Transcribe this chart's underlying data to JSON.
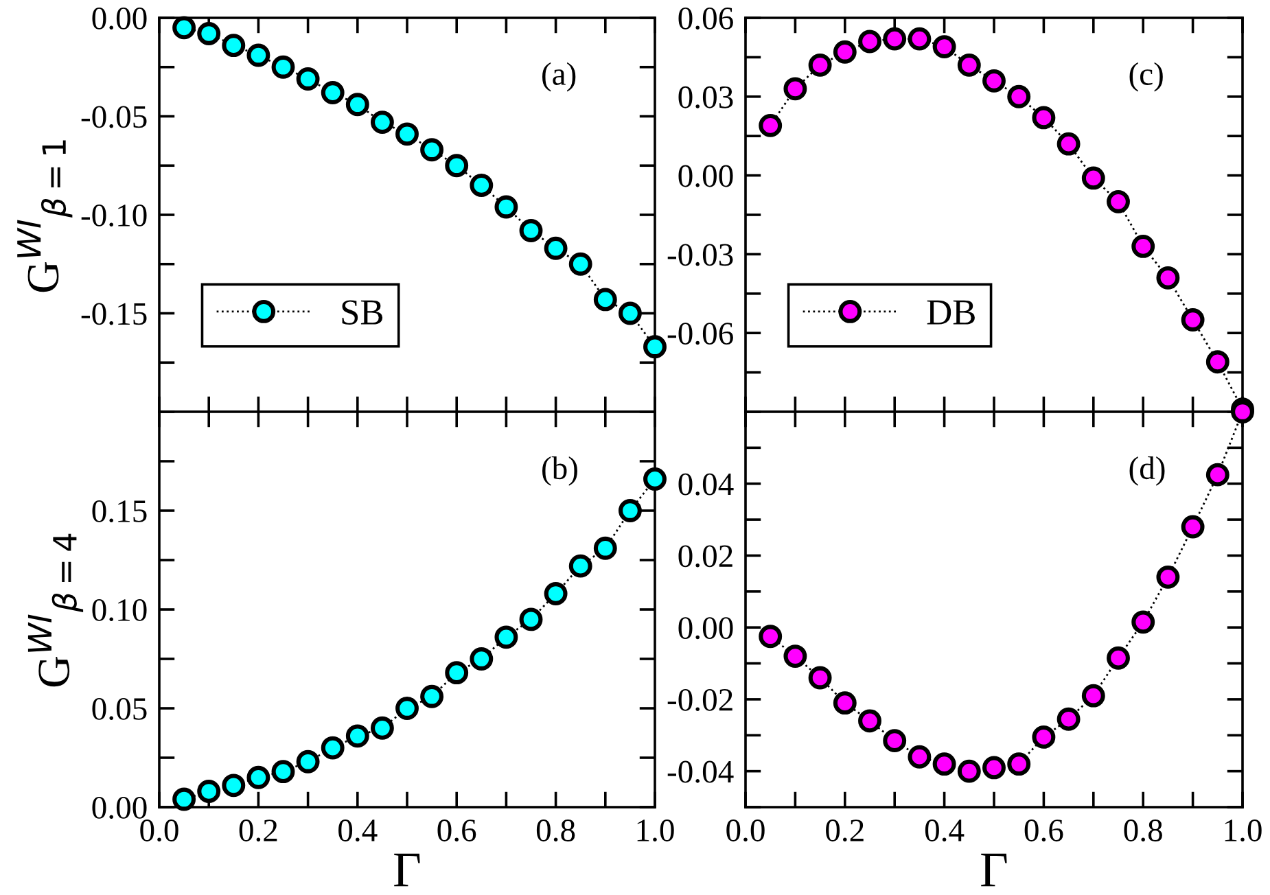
{
  "chart_data": [
    {
      "type": "line",
      "ylabel": "G$^{WI}$$_{β=1}$",
      "annotations": [
        "(a)"
      ],
      "xlim": [
        0.0,
        1.0
      ],
      "ylim": [
        -0.2,
        0.0
      ],
      "xticks": [
        {
          "value": 0.0,
          "label": null
        },
        {
          "value": 0.1,
          "label": null
        },
        {
          "value": 0.2,
          "label": null
        },
        {
          "value": 0.3,
          "label": null
        },
        {
          "value": 0.4,
          "label": null
        },
        {
          "value": 0.5,
          "label": null
        },
        {
          "value": 0.6,
          "label": null
        },
        {
          "value": 0.7,
          "label": null
        },
        {
          "value": 0.8,
          "label": null
        },
        {
          "value": 0.9,
          "label": null
        },
        {
          "value": 1.0,
          "label": null
        }
      ],
      "yticks": [
        {
          "value": -0.2,
          "label": null
        },
        {
          "value": -0.175,
          "label": null
        },
        {
          "value": -0.15,
          "label": "-0.15"
        },
        {
          "value": -0.125,
          "label": null
        },
        {
          "value": -0.1,
          "label": "-0.10"
        },
        {
          "value": -0.075,
          "label": null
        },
        {
          "value": -0.05,
          "label": "-0.05"
        },
        {
          "value": -0.025,
          "label": null
        },
        {
          "value": 0.0,
          "label": "0.00"
        }
      ],
      "tick_labels": "y",
      "legend": "bottom left",
      "marker": "circle",
      "line_style": "dotted",
      "x": [
        0.05,
        0.1,
        0.15,
        0.2,
        0.25,
        0.3,
        0.35,
        0.4,
        0.45,
        0.5,
        0.55,
        0.6,
        0.65,
        0.7,
        0.75,
        0.8,
        0.85,
        0.9,
        0.95,
        1.0
      ],
      "series": [
        {
          "name": "SB",
          "color": "#00ffff",
          "values": [
            -0.005,
            -0.008,
            -0.014,
            -0.019,
            -0.025,
            -0.031,
            -0.038,
            -0.044,
            -0.053,
            -0.059,
            -0.067,
            -0.075,
            -0.085,
            -0.096,
            -0.108,
            -0.117,
            -0.125,
            -0.143,
            -0.15,
            -0.167
          ]
        }
      ]
    },
    {
      "type": "line",
      "annotations": [
        "(c)"
      ],
      "xlim": [
        0.0,
        1.0
      ],
      "ylim": [
        -0.09,
        0.06
      ],
      "xticks": [
        {
          "value": 0.0,
          "label": null
        },
        {
          "value": 0.1,
          "label": null
        },
        {
          "value": 0.2,
          "label": null
        },
        {
          "value": 0.3,
          "label": null
        },
        {
          "value": 0.4,
          "label": null
        },
        {
          "value": 0.5,
          "label": null
        },
        {
          "value": 0.6,
          "label": null
        },
        {
          "value": 0.7,
          "label": null
        },
        {
          "value": 0.8,
          "label": null
        },
        {
          "value": 0.9,
          "label": null
        },
        {
          "value": 1.0,
          "label": null
        }
      ],
      "yticks": [
        {
          "value": -0.09,
          "label": null
        },
        {
          "value": -0.075,
          "label": null
        },
        {
          "value": -0.06,
          "label": "-0.06"
        },
        {
          "value": -0.045,
          "label": null
        },
        {
          "value": -0.03,
          "label": "-0.03"
        },
        {
          "value": -0.015,
          "label": null
        },
        {
          "value": 0.0,
          "label": "0.00"
        },
        {
          "value": 0.015,
          "label": null
        },
        {
          "value": 0.03,
          "label": "0.03"
        },
        {
          "value": 0.045,
          "label": null
        },
        {
          "value": 0.06,
          "label": "0.06"
        }
      ],
      "tick_labels": "y",
      "legend": "bottom left",
      "marker": "circle",
      "line_style": "dotted",
      "x": [
        0.05,
        0.1,
        0.15,
        0.2,
        0.25,
        0.3,
        0.35,
        0.4,
        0.45,
        0.5,
        0.55,
        0.6,
        0.65,
        0.7,
        0.75,
        0.8,
        0.85,
        0.9,
        0.95,
        1.0
      ],
      "series": [
        {
          "name": "DB",
          "color": "#ff00ff",
          "values": [
            0.019,
            0.033,
            0.042,
            0.047,
            0.051,
            0.052,
            0.052,
            0.049,
            0.042,
            0.036,
            0.03,
            0.022,
            0.012,
            -0.001,
            -0.01,
            -0.027,
            -0.039,
            -0.055,
            -0.071,
            -0.089
          ]
        }
      ]
    },
    {
      "type": "line",
      "ylabel": "G$^{WI}$$_{β=4}$",
      "xlabel": "Γ",
      "annotations": [
        "(b)"
      ],
      "xlim": [
        0.0,
        1.0
      ],
      "ylim": [
        0.0,
        0.2
      ],
      "xticks": [
        {
          "value": 0.0,
          "label": "0.0"
        },
        {
          "value": 0.1,
          "label": null
        },
        0.2,
        {
          "value": 0.3,
          "label": null
        },
        0.4,
        {
          "value": 0.5,
          "label": null
        },
        0.6,
        {
          "value": 0.7,
          "label": null
        },
        0.8,
        {
          "value": 0.9,
          "label": null
        },
        {
          "value": 1.0,
          "label": "1.0"
        }
      ],
      "yticks": [
        {
          "value": 0.0,
          "label": "0.00"
        },
        {
          "value": 0.025,
          "label": null
        },
        {
          "value": 0.05,
          "label": "0.05"
        },
        {
          "value": 0.075,
          "label": null
        },
        {
          "value": 0.1,
          "label": "0.10"
        },
        {
          "value": 0.125,
          "label": null
        },
        {
          "value": 0.15,
          "label": "0.15"
        },
        {
          "value": 0.175,
          "label": null
        },
        {
          "value": 0.2,
          "label": null
        }
      ],
      "marker": "circle",
      "line_style": "dotted",
      "x": [
        0.05,
        0.1,
        0.15,
        0.2,
        0.25,
        0.3,
        0.35,
        0.4,
        0.45,
        0.5,
        0.55,
        0.6,
        0.65,
        0.7,
        0.75,
        0.8,
        0.85,
        0.9,
        0.95,
        1.0
      ],
      "series": [
        {
          "color": "#00ffff",
          "values": [
            0.004,
            0.008,
            0.011,
            0.015,
            0.018,
            0.023,
            0.03,
            0.036,
            0.04,
            0.05,
            0.056,
            0.068,
            0.075,
            0.086,
            0.095,
            0.108,
            0.122,
            0.131,
            0.15,
            0.166
          ]
        }
      ]
    },
    {
      "type": "line",
      "xlabel": "Γ",
      "annotations": [
        "(d)"
      ],
      "xlim": [
        0.0,
        1.0
      ],
      "ylim": [
        -0.05,
        0.06
      ],
      "xticks": [
        {
          "value": 0.0,
          "label": "0.0"
        },
        {
          "value": 0.1,
          "label": null
        },
        0.2,
        {
          "value": 0.3,
          "label": null
        },
        0.4,
        {
          "value": 0.5,
          "label": null
        },
        0.6,
        {
          "value": 0.7,
          "label": null
        },
        0.8,
        {
          "value": 0.9,
          "label": null
        },
        {
          "value": 1.0,
          "label": "1.0"
        }
      ],
      "yticks": [
        {
          "value": -0.05,
          "label": null
        },
        {
          "value": -0.04,
          "label": "-0.04"
        },
        {
          "value": -0.03,
          "label": null
        },
        {
          "value": -0.02,
          "label": "-0.02"
        },
        {
          "value": -0.01,
          "label": null
        },
        {
          "value": 0.0,
          "label": "0.00"
        },
        {
          "value": 0.01,
          "label": null
        },
        {
          "value": 0.02,
          "label": "0.02"
        },
        {
          "value": 0.03,
          "label": null
        },
        {
          "value": 0.04,
          "label": "0.04"
        },
        {
          "value": 0.05,
          "label": null
        },
        {
          "value": 0.06,
          "label": null
        }
      ],
      "marker": "circle",
      "line_style": "dotted",
      "x": [
        0.05,
        0.1,
        0.15,
        0.2,
        0.25,
        0.3,
        0.35,
        0.4,
        0.45,
        0.5,
        0.55,
        0.6,
        0.65,
        0.7,
        0.75,
        0.8,
        0.85,
        0.9,
        0.95,
        1.0
      ],
      "series": [
        {
          "color": "#ff00ff",
          "values": [
            -0.0025,
            -0.008,
            -0.014,
            -0.021,
            -0.026,
            -0.0315,
            -0.036,
            -0.038,
            -0.04,
            -0.039,
            -0.038,
            -0.0305,
            -0.0255,
            -0.019,
            -0.0085,
            0.0015,
            0.014,
            0.028,
            0.0425,
            0.06
          ]
        }
      ]
    }
  ]
}
